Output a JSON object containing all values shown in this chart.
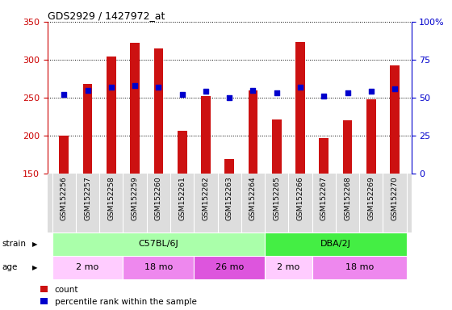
{
  "title": "GDS2929 / 1427972_at",
  "samples": [
    "GSM152256",
    "GSM152257",
    "GSM152258",
    "GSM152259",
    "GSM152260",
    "GSM152261",
    "GSM152262",
    "GSM152263",
    "GSM152264",
    "GSM152265",
    "GSM152266",
    "GSM152267",
    "GSM152268",
    "GSM152269",
    "GSM152270"
  ],
  "counts": [
    200,
    268,
    304,
    322,
    315,
    206,
    252,
    169,
    259,
    221,
    323,
    197,
    220,
    248,
    293
  ],
  "percentile_ranks": [
    52,
    55,
    57,
    58,
    57,
    52,
    54,
    50,
    55,
    53,
    57,
    51,
    53,
    54,
    56
  ],
  "ylim_left": [
    150,
    350
  ],
  "ylim_right": [
    0,
    100
  ],
  "yticks_left": [
    150,
    200,
    250,
    300,
    350
  ],
  "yticks_right": [
    0,
    25,
    50,
    75,
    100
  ],
  "strain_groups": [
    {
      "label": "C57BL/6J",
      "start": 0,
      "end": 9,
      "color": "#aaffaa"
    },
    {
      "label": "DBA/2J",
      "start": 9,
      "end": 15,
      "color": "#44ee44"
    }
  ],
  "age_groups": [
    {
      "label": "2 mo",
      "start": 0,
      "end": 3,
      "color": "#ffccff"
    },
    {
      "label": "18 mo",
      "start": 3,
      "end": 6,
      "color": "#ee88ee"
    },
    {
      "label": "26 mo",
      "start": 6,
      "end": 9,
      "color": "#dd55dd"
    },
    {
      "label": "2 mo",
      "start": 9,
      "end": 11,
      "color": "#ffccff"
    },
    {
      "label": "18 mo",
      "start": 11,
      "end": 15,
      "color": "#ee88ee"
    }
  ],
  "bar_color": "#cc1111",
  "dot_color": "#0000cc",
  "axis_left_color": "#cc0000",
  "axis_right_color": "#0000cc",
  "xtick_bg": "#dddddd",
  "bar_width": 0.4
}
